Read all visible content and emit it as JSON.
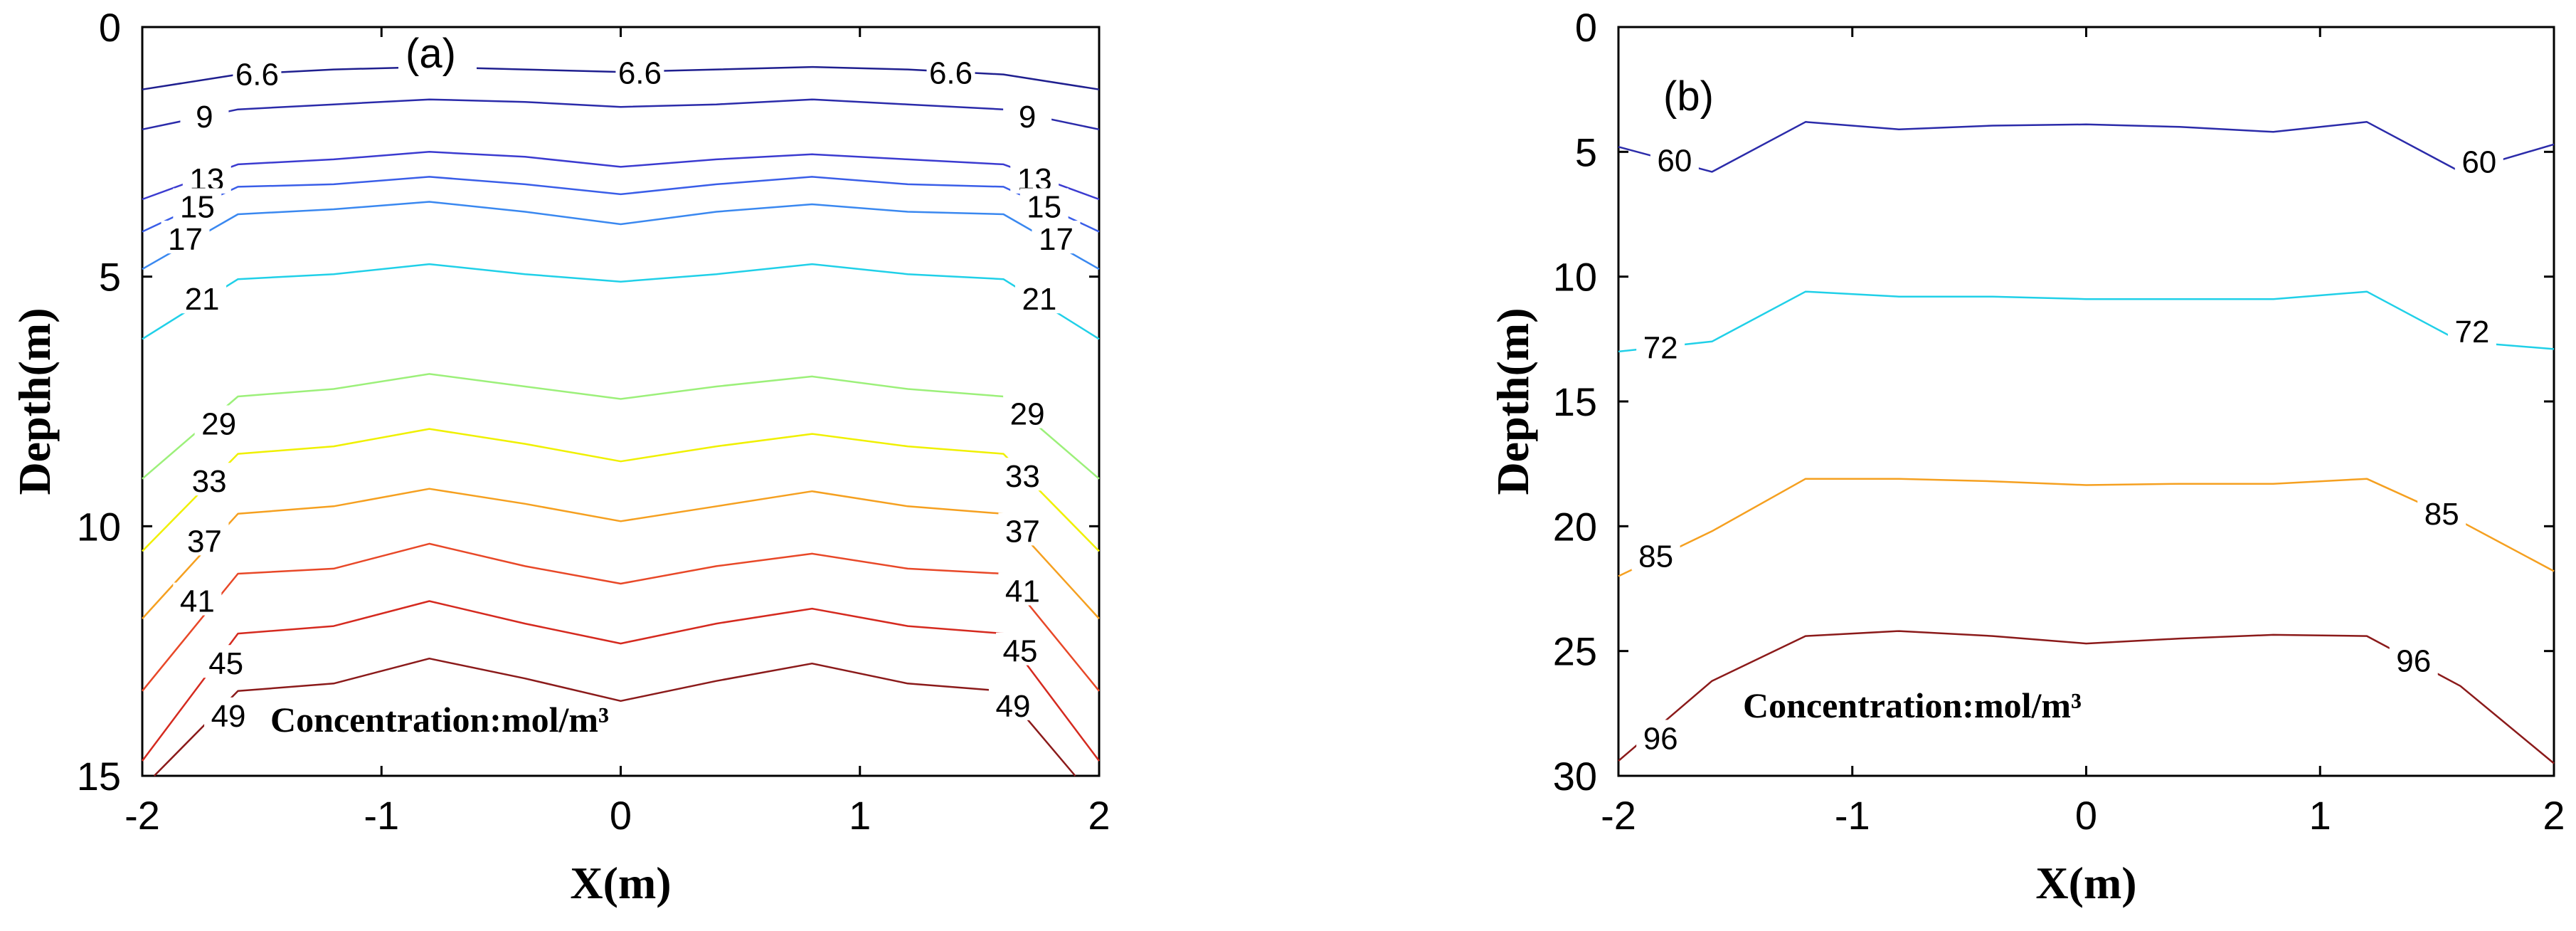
{
  "chart_data": [
    {
      "type": "contour",
      "panel": "(a)",
      "xlabel": "X(m)",
      "ylabel": "Depth(m)",
      "xlim": [
        -2,
        2
      ],
      "ylim": [
        0,
        15
      ],
      "y_reversed": true,
      "xticks": [
        -2,
        -1,
        0,
        1,
        2
      ],
      "yticks": [
        0,
        5,
        10,
        15
      ],
      "xtick_labels": [
        "-2",
        "-1",
        "0",
        "1",
        "2"
      ],
      "ytick_labels": [
        "0",
        "5",
        "10",
        "15"
      ],
      "annotation": "Concentration:mol/m³",
      "levels": [
        {
          "label": "6.6",
          "color": "#1f1f8f",
          "points": [
            [
              -2,
              1.25
            ],
            [
              -1.6,
              0.95
            ],
            [
              -1.2,
              0.85
            ],
            [
              -0.8,
              0.8
            ],
            [
              -0.4,
              0.85
            ],
            [
              0,
              0.9
            ],
            [
              0.4,
              0.85
            ],
            [
              0.8,
              0.8
            ],
            [
              1.2,
              0.85
            ],
            [
              1.6,
              0.95
            ],
            [
              2,
              1.25
            ]
          ],
          "label_positions": [
            [
              -1.52,
              0.95
            ],
            [
              0.08,
              0.92
            ],
            [
              1.38,
              0.92
            ]
          ]
        },
        {
          "label": "9",
          "color": "#2b2baa",
          "points": [
            [
              -2,
              2.05
            ],
            [
              -1.6,
              1.65
            ],
            [
              -1.2,
              1.55
            ],
            [
              -0.8,
              1.45
            ],
            [
              -0.4,
              1.5
            ],
            [
              0,
              1.6
            ],
            [
              0.4,
              1.55
            ],
            [
              0.8,
              1.45
            ],
            [
              1.2,
              1.55
            ],
            [
              1.6,
              1.65
            ],
            [
              2,
              2.05
            ]
          ],
          "label_positions": [
            [
              -1.74,
              1.8
            ],
            [
              1.7,
              1.8
            ]
          ]
        },
        {
          "label": "13",
          "color": "#3b3bd0",
          "points": [
            [
              -2,
              3.45
            ],
            [
              -1.6,
              2.75
            ],
            [
              -1.2,
              2.65
            ],
            [
              -0.8,
              2.5
            ],
            [
              -0.4,
              2.6
            ],
            [
              0,
              2.8
            ],
            [
              0.4,
              2.65
            ],
            [
              0.8,
              2.55
            ],
            [
              1.2,
              2.65
            ],
            [
              1.6,
              2.75
            ],
            [
              2,
              3.45
            ]
          ],
          "label_positions": [
            [
              -1.73,
              3.05
            ],
            [
              1.73,
              3.05
            ]
          ]
        },
        {
          "label": "15",
          "color": "#3a5ee8",
          "points": [
            [
              -2,
              4.1
            ],
            [
              -1.6,
              3.2
            ],
            [
              -1.2,
              3.15
            ],
            [
              -0.8,
              3.0
            ],
            [
              -0.4,
              3.15
            ],
            [
              0,
              3.35
            ],
            [
              0.4,
              3.15
            ],
            [
              0.8,
              3.0
            ],
            [
              1.2,
              3.15
            ],
            [
              1.6,
              3.2
            ],
            [
              2,
              4.1
            ]
          ],
          "label_positions": [
            [
              -1.77,
              3.6
            ],
            [
              1.77,
              3.6
            ]
          ]
        },
        {
          "label": "17",
          "color": "#3a88f0",
          "points": [
            [
              -2,
              4.85
            ],
            [
              -1.6,
              3.75
            ],
            [
              -1.2,
              3.65
            ],
            [
              -0.8,
              3.5
            ],
            [
              -0.4,
              3.7
            ],
            [
              0,
              3.95
            ],
            [
              0.4,
              3.7
            ],
            [
              0.8,
              3.55
            ],
            [
              1.2,
              3.7
            ],
            [
              1.6,
              3.75
            ],
            [
              2,
              4.85
            ]
          ],
          "label_positions": [
            [
              -1.82,
              4.25
            ],
            [
              1.82,
              4.25
            ]
          ]
        },
        {
          "label": "21",
          "color": "#20d0e8",
          "points": [
            [
              -2,
              6.25
            ],
            [
              -1.6,
              5.05
            ],
            [
              -1.2,
              4.95
            ],
            [
              -0.8,
              4.75
            ],
            [
              -0.4,
              4.95
            ],
            [
              0,
              5.1
            ],
            [
              0.4,
              4.95
            ],
            [
              0.8,
              4.75
            ],
            [
              1.2,
              4.95
            ],
            [
              1.6,
              5.05
            ],
            [
              2,
              6.25
            ]
          ],
          "label_positions": [
            [
              -1.75,
              5.45
            ],
            [
              1.75,
              5.45
            ]
          ]
        },
        {
          "label": "29",
          "color": "#9cf07a",
          "points": [
            [
              -2,
              9.05
            ],
            [
              -1.6,
              7.4
            ],
            [
              -1.2,
              7.25
            ],
            [
              -0.8,
              6.95
            ],
            [
              -0.4,
              7.2
            ],
            [
              0,
              7.45
            ],
            [
              0.4,
              7.2
            ],
            [
              0.8,
              7.0
            ],
            [
              1.2,
              7.25
            ],
            [
              1.6,
              7.4
            ],
            [
              2,
              9.05
            ]
          ],
          "label_positions": [
            [
              -1.68,
              7.95
            ],
            [
              1.7,
              7.75
            ]
          ]
        },
        {
          "label": "33",
          "color": "#f0f000",
          "points": [
            [
              -2,
              10.5
            ],
            [
              -1.6,
              8.55
            ],
            [
              -1.2,
              8.4
            ],
            [
              -0.8,
              8.05
            ],
            [
              -0.4,
              8.35
            ],
            [
              0,
              8.7
            ],
            [
              0.4,
              8.4
            ],
            [
              0.8,
              8.15
            ],
            [
              1.2,
              8.4
            ],
            [
              1.6,
              8.55
            ],
            [
              2,
              10.5
            ]
          ],
          "label_positions": [
            [
              -1.72,
              9.1
            ],
            [
              1.68,
              9.0
            ]
          ]
        },
        {
          "label": "37",
          "color": "#f5a020",
          "points": [
            [
              -2,
              11.85
            ],
            [
              -1.6,
              9.75
            ],
            [
              -1.2,
              9.6
            ],
            [
              -0.8,
              9.25
            ],
            [
              -0.4,
              9.55
            ],
            [
              0,
              9.9
            ],
            [
              0.4,
              9.6
            ],
            [
              0.8,
              9.3
            ],
            [
              1.2,
              9.6
            ],
            [
              1.6,
              9.75
            ],
            [
              2,
              11.85
            ]
          ],
          "label_positions": [
            [
              -1.74,
              10.3
            ],
            [
              1.68,
              10.1
            ]
          ]
        },
        {
          "label": "41",
          "color": "#e84828",
          "points": [
            [
              -2,
              13.3
            ],
            [
              -1.6,
              10.95
            ],
            [
              -1.2,
              10.85
            ],
            [
              -0.8,
              10.35
            ],
            [
              -0.4,
              10.8
            ],
            [
              0,
              11.15
            ],
            [
              0.4,
              10.8
            ],
            [
              0.8,
              10.55
            ],
            [
              1.2,
              10.85
            ],
            [
              1.6,
              10.95
            ],
            [
              2,
              13.3
            ]
          ],
          "label_positions": [
            [
              -1.77,
              11.5
            ],
            [
              1.68,
              11.3
            ]
          ]
        },
        {
          "label": "45",
          "color": "#d52a1f",
          "points": [
            [
              -2,
              14.7
            ],
            [
              -1.6,
              12.15
            ],
            [
              -1.2,
              12.0
            ],
            [
              -0.8,
              11.5
            ],
            [
              -0.4,
              11.95
            ],
            [
              0,
              12.35
            ],
            [
              0.4,
              11.95
            ],
            [
              0.8,
              11.65
            ],
            [
              1.2,
              12.0
            ],
            [
              1.6,
              12.15
            ],
            [
              2,
              14.7
            ]
          ],
          "label_positions": [
            [
              -1.65,
              12.75
            ],
            [
              1.67,
              12.5
            ]
          ]
        },
        {
          "label": "49",
          "color": "#8b1a1a",
          "points": [
            [
              -1.95,
              15.0
            ],
            [
              -1.6,
              13.3
            ],
            [
              -1.2,
              13.15
            ],
            [
              -0.8,
              12.65
            ],
            [
              -0.4,
              13.05
            ],
            [
              0,
              13.5
            ],
            [
              0.4,
              13.1
            ],
            [
              0.8,
              12.75
            ],
            [
              1.2,
              13.15
            ],
            [
              1.6,
              13.3
            ],
            [
              1.9,
              15.0
            ]
          ],
          "label_positions": [
            [
              -1.64,
              13.8
            ],
            [
              1.64,
              13.6
            ]
          ]
        }
      ]
    },
    {
      "type": "contour",
      "panel": "(b)",
      "xlabel": "X(m)",
      "ylabel": "Depth(m)",
      "xlim": [
        -2,
        2
      ],
      "ylim": [
        0,
        30
      ],
      "y_reversed": true,
      "xticks": [
        -2,
        -1,
        0,
        1,
        2
      ],
      "yticks": [
        0,
        5,
        10,
        15,
        20,
        25,
        30
      ],
      "xtick_labels": [
        "-2",
        "-1",
        "0",
        "1",
        "2"
      ],
      "ytick_labels": [
        "0",
        "5",
        "10",
        "15",
        "20",
        "25",
        "30"
      ],
      "annotation": "Concentration:mol/m³",
      "levels": [
        {
          "label": "60",
          "color": "#2b2baa",
          "points": [
            [
              -2,
              4.8
            ],
            [
              -1.6,
              5.8
            ],
            [
              -1.2,
              3.8
            ],
            [
              -0.8,
              4.1
            ],
            [
              -0.4,
              3.95
            ],
            [
              0,
              3.9
            ],
            [
              0.4,
              4.0
            ],
            [
              0.8,
              4.2
            ],
            [
              1.2,
              3.8
            ],
            [
              1.6,
              5.8
            ],
            [
              2,
              4.7
            ]
          ],
          "label_positions": [
            [
              -1.76,
              5.35
            ],
            [
              1.68,
              5.4
            ]
          ]
        },
        {
          "label": "72",
          "color": "#20d0e8",
          "points": [
            [
              -2,
              13.0
            ],
            [
              -1.6,
              12.6
            ],
            [
              -1.2,
              10.6
            ],
            [
              -0.8,
              10.8
            ],
            [
              -0.4,
              10.8
            ],
            [
              0,
              10.9
            ],
            [
              0.4,
              10.9
            ],
            [
              0.8,
              10.9
            ],
            [
              1.2,
              10.6
            ],
            [
              1.6,
              12.6
            ],
            [
              2,
              12.9
            ]
          ],
          "label_positions": [
            [
              -1.82,
              12.85
            ],
            [
              1.65,
              12.2
            ]
          ]
        },
        {
          "label": "85",
          "color": "#f5a020",
          "points": [
            [
              -2,
              22.0
            ],
            [
              -1.6,
              20.2
            ],
            [
              -1.2,
              18.1
            ],
            [
              -0.8,
              18.1
            ],
            [
              -0.4,
              18.2
            ],
            [
              0,
              18.35
            ],
            [
              0.4,
              18.3
            ],
            [
              0.8,
              18.3
            ],
            [
              1.2,
              18.1
            ],
            [
              1.6,
              19.8
            ],
            [
              2,
              21.8
            ]
          ],
          "label_positions": [
            [
              -1.84,
              21.2
            ],
            [
              1.52,
              19.5
            ]
          ]
        },
        {
          "label": "96",
          "color": "#8b1a1a",
          "points": [
            [
              -2,
              29.4
            ],
            [
              -1.6,
              26.2
            ],
            [
              -1.2,
              24.4
            ],
            [
              -0.8,
              24.2
            ],
            [
              -0.4,
              24.4
            ],
            [
              0,
              24.7
            ],
            [
              0.4,
              24.5
            ],
            [
              0.8,
              24.35
            ],
            [
              1.2,
              24.4
            ],
            [
              1.6,
              26.4
            ],
            [
              2,
              29.5
            ]
          ],
          "label_positions": [
            [
              -1.82,
              28.5
            ],
            [
              1.4,
              25.4
            ]
          ]
        }
      ]
    }
  ]
}
